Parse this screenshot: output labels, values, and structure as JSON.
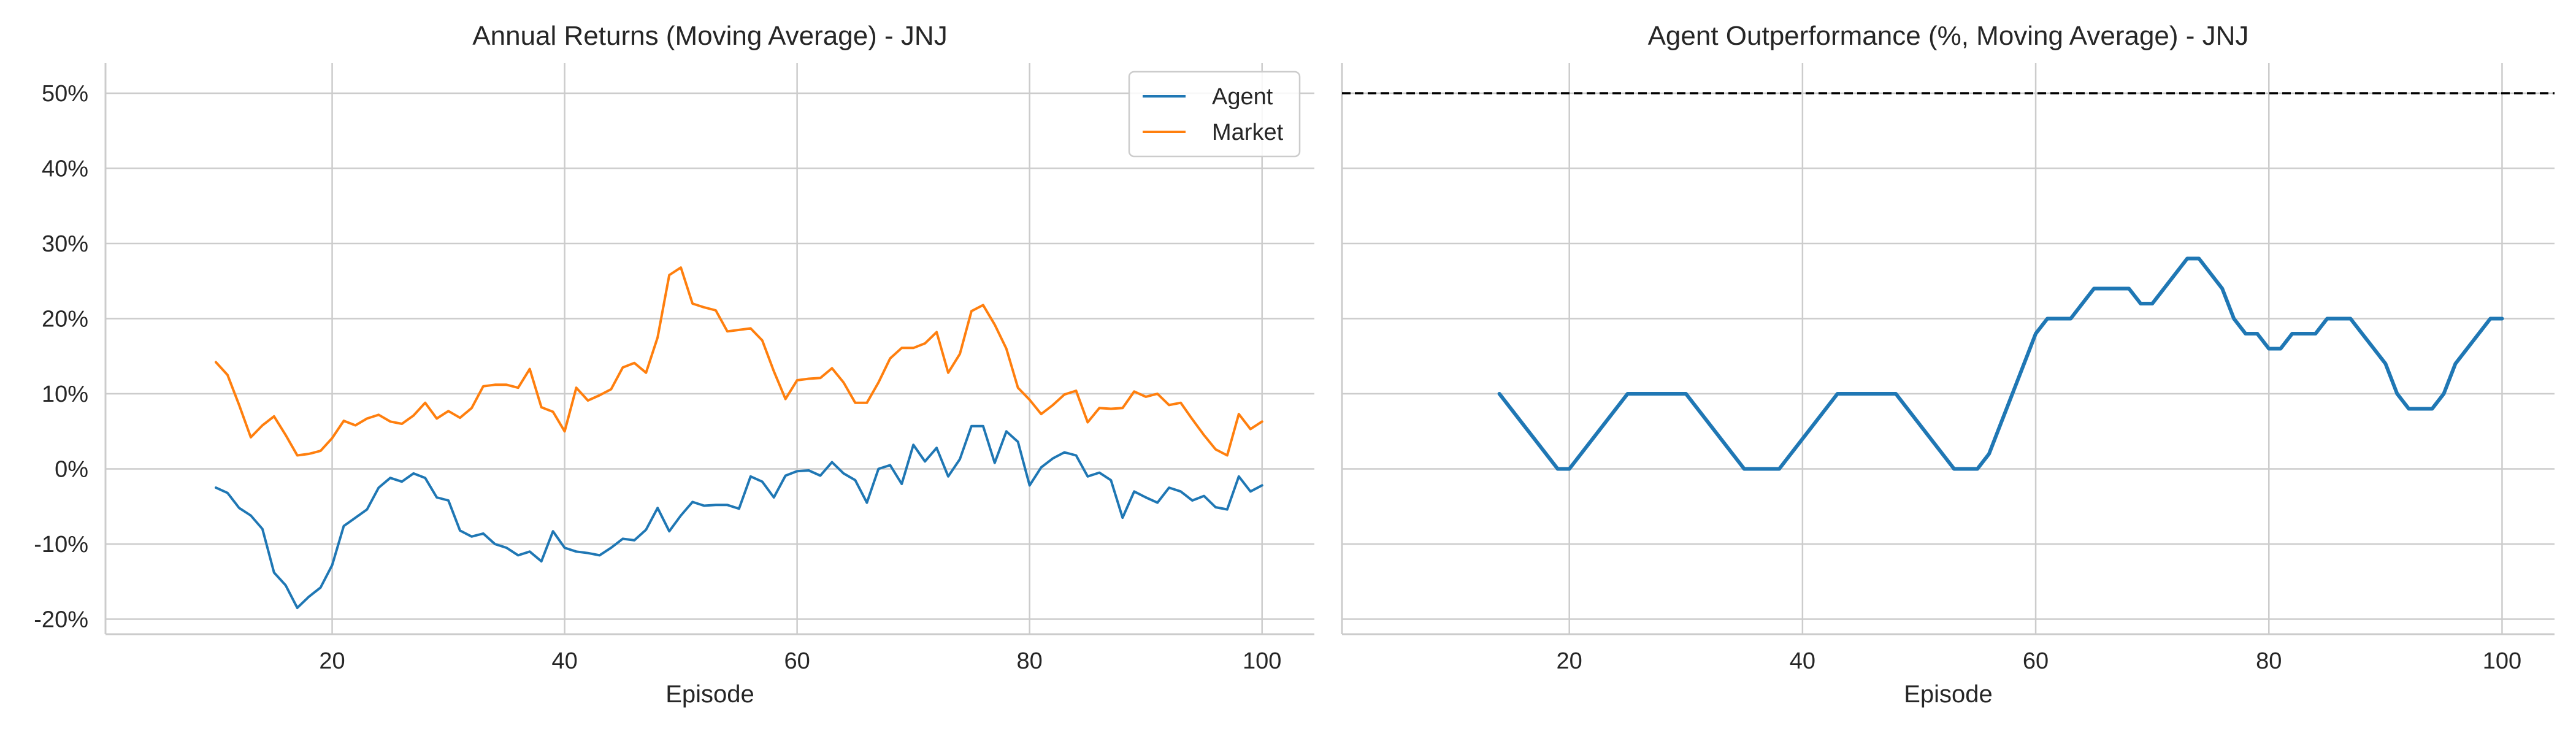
{
  "chart_data": [
    {
      "type": "line",
      "title": "Annual Returns (Moving Average) - JNJ",
      "xlabel": "Episode",
      "ylabel": "",
      "xlim": [
        0.5,
        104.5
      ],
      "ylim": [
        -22,
        54
      ],
      "x_ticks": [
        20,
        40,
        60,
        80,
        100
      ],
      "x_tick_labels": [
        "20",
        "40",
        "60",
        "80",
        "100"
      ],
      "y_ticks": [
        -20,
        -10,
        0,
        10,
        20,
        30,
        40,
        50
      ],
      "y_tick_labels": [
        "-20%",
        "-10%",
        "0%",
        "10%",
        "20%",
        "30%",
        "40%",
        "50%"
      ],
      "grid": true,
      "legend_position": "top-right",
      "series": [
        {
          "name": "Agent",
          "color": "#1f77b4",
          "x": [
            10,
            11,
            12,
            13,
            14,
            15,
            16,
            17,
            18,
            19,
            20,
            21,
            22,
            23,
            24,
            25,
            26,
            27,
            28,
            29,
            30,
            31,
            32,
            33,
            34,
            35,
            36,
            37,
            38,
            39,
            40,
            41,
            42,
            43,
            44,
            45,
            46,
            47,
            48,
            49,
            50,
            51,
            52,
            53,
            54,
            55,
            56,
            57,
            58,
            59,
            60,
            61,
            62,
            63,
            64,
            65,
            66,
            67,
            68,
            69,
            70,
            71,
            72,
            73,
            74,
            75,
            76,
            77,
            78,
            79,
            80,
            81,
            82,
            83,
            84,
            85,
            86,
            87,
            88,
            89,
            90,
            91,
            92,
            93,
            94,
            95,
            96,
            97,
            98,
            99,
            100
          ],
          "values": [
            -2.5,
            -3.2,
            -5.2,
            -6.2,
            -8,
            -13.8,
            -15.5,
            -18.5,
            -17,
            -15.8,
            -12.8,
            -7.6,
            -6.5,
            -5.4,
            -2.5,
            -1.2,
            -1.7,
            -0.6,
            -1.2,
            -3.8,
            -4.2,
            -8.2,
            -9,
            -8.6,
            -10,
            -10.5,
            -11.5,
            -11,
            -12.3,
            -8.3,
            -10.5,
            -11,
            -11.2,
            -11.5,
            -10.5,
            -9.3,
            -9.5,
            -8.1,
            -5.2,
            -8.3,
            -6.2,
            -4.4,
            -4.9,
            -4.8,
            -4.8,
            -5.3,
            -1,
            -1.7,
            -3.8,
            -0.9,
            -0.3,
            -0.2,
            -0.9,
            0.9,
            -0.6,
            -1.5,
            -4.5,
            0,
            0.5,
            -2,
            3.2,
            1,
            2.8,
            -1,
            1.3,
            5.7,
            5.7,
            0.8,
            5,
            3.6,
            -2.2,
            0.2,
            1.4,
            2.2,
            1.8,
            -1,
            -0.5,
            -1.5,
            -6.5,
            -3,
            -3.8,
            -4.5,
            -2.5,
            -3,
            -4.2,
            -3.6,
            -5.1,
            -5.4,
            -1,
            -3,
            -2.2
          ]
        },
        {
          "name": "Market",
          "color": "#ff7f0e",
          "x": [
            10,
            11,
            12,
            13,
            14,
            15,
            16,
            17,
            18,
            19,
            20,
            21,
            22,
            23,
            24,
            25,
            26,
            27,
            28,
            29,
            30,
            31,
            32,
            33,
            34,
            35,
            36,
            37,
            38,
            39,
            40,
            41,
            42,
            43,
            44,
            45,
            46,
            47,
            48,
            49,
            50,
            51,
            52,
            53,
            54,
            55,
            56,
            57,
            58,
            59,
            60,
            61,
            62,
            63,
            64,
            65,
            66,
            67,
            68,
            69,
            70,
            71,
            72,
            73,
            74,
            75,
            76,
            77,
            78,
            79,
            80,
            81,
            82,
            83,
            84,
            85,
            86,
            87,
            88,
            89,
            90,
            91,
            92,
            93,
            94,
            95,
            96,
            97,
            98,
            99,
            100
          ],
          "values": [
            14.2,
            12.5,
            8.5,
            4.2,
            5.8,
            7,
            4.5,
            1.8,
            2,
            2.4,
            4.1,
            6.4,
            5.8,
            6.7,
            7.2,
            6.3,
            6,
            7.1,
            8.8,
            6.7,
            7.7,
            6.8,
            8.1,
            11,
            11.2,
            11.2,
            10.8,
            13.3,
            8.2,
            7.6,
            5,
            10.8,
            9.1,
            9.8,
            10.6,
            13.5,
            14.1,
            12.8,
            17.5,
            25.8,
            26.8,
            22,
            21.5,
            21.1,
            18.3,
            18.5,
            18.7,
            17.1,
            13,
            9.3,
            11.8,
            12,
            12.1,
            13.4,
            11.5,
            8.8,
            8.8,
            11.5,
            14.7,
            16.1,
            16.1,
            16.7,
            18.2,
            12.8,
            15.3,
            21,
            21.8,
            19.2,
            16,
            10.8,
            9.2,
            7.3,
            8.5,
            9.9,
            10.4,
            6.2,
            8.1,
            8,
            8.1,
            10.3,
            9.6,
            10,
            8.5,
            8.8,
            6.6,
            4.5,
            2.6,
            1.8,
            7.3,
            5.3,
            6.3
          ]
        }
      ]
    },
    {
      "type": "line",
      "title": "Agent Outperformance (%, Moving Average) - JNJ",
      "xlabel": "Episode",
      "ylabel": "",
      "xlim": [
        0.5,
        104.5
      ],
      "ylim": [
        -22,
        54
      ],
      "x_ticks": [
        20,
        40,
        60,
        80,
        100
      ],
      "x_tick_labels": [
        "20",
        "40",
        "60",
        "80",
        "100"
      ],
      "y_ticks": [
        -20,
        -10,
        0,
        10,
        20,
        30,
        40,
        50
      ],
      "grid": true,
      "reference_line": {
        "y": 50,
        "style": "dashed",
        "color": "#000000"
      },
      "series": [
        {
          "color": "#1f77b4",
          "x": [
            14,
            15,
            16,
            17,
            18,
            19,
            20,
            21,
            22,
            23,
            24,
            25,
            26,
            27,
            28,
            29,
            30,
            31,
            32,
            33,
            34,
            35,
            36,
            37,
            38,
            39,
            40,
            41,
            42,
            43,
            44,
            45,
            46,
            47,
            48,
            49,
            50,
            51,
            52,
            53,
            54,
            55,
            56,
            57,
            58,
            59,
            60,
            61,
            62,
            63,
            64,
            65,
            66,
            67,
            68,
            69,
            70,
            71,
            72,
            73,
            74,
            75,
            76,
            77,
            78,
            79,
            80,
            81,
            82,
            83,
            84,
            85,
            86,
            87,
            88,
            89,
            90,
            91,
            92,
            93,
            94,
            95,
            96,
            97,
            98,
            99,
            100
          ],
          "values": [
            10,
            8,
            6,
            4,
            2,
            0,
            0,
            2,
            4,
            6,
            8,
            10,
            10,
            10,
            10,
            10,
            10,
            8,
            6,
            4,
            2,
            0,
            0,
            0,
            0,
            2,
            4,
            6,
            8,
            10,
            10,
            10,
            10,
            10,
            10,
            8,
            6,
            4,
            2,
            0,
            0,
            0,
            2,
            6,
            10,
            14,
            18,
            20,
            20,
            20,
            22,
            24,
            24,
            24,
            24,
            22,
            22,
            24,
            26,
            28,
            28,
            26,
            24,
            20,
            18,
            18,
            16,
            16,
            18,
            18,
            18,
            20,
            20,
            20,
            18,
            16,
            14,
            10,
            8,
            8,
            8,
            10,
            14,
            16,
            18,
            20,
            20
          ]
        }
      ]
    }
  ]
}
